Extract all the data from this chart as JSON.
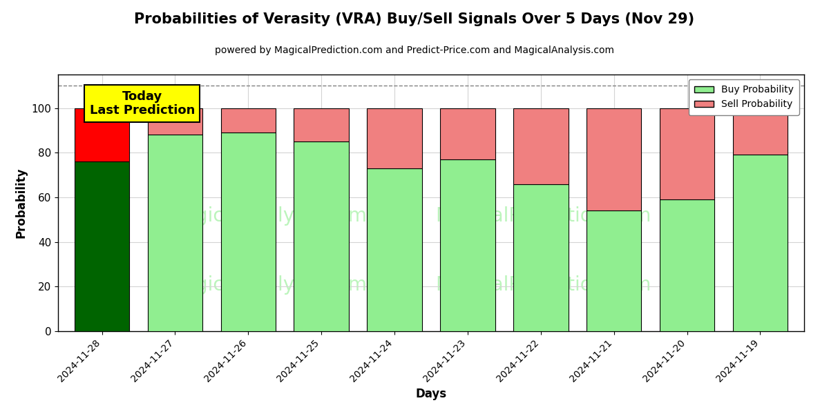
{
  "title": "Probabilities of Verasity (VRA) Buy/Sell Signals Over 5 Days (Nov 29)",
  "subtitle": "powered by MagicalPrediction.com and Predict-Price.com and MagicalAnalysis.com",
  "xlabel": "Days",
  "ylabel": "Probability",
  "dates": [
    "2024-11-28",
    "2024-11-27",
    "2024-11-26",
    "2024-11-25",
    "2024-11-24",
    "2024-11-23",
    "2024-11-22",
    "2024-11-21",
    "2024-11-20",
    "2024-11-19"
  ],
  "buy_values": [
    76,
    88,
    89,
    85,
    73,
    77,
    66,
    54,
    59,
    79
  ],
  "sell_values": [
    24,
    12,
    11,
    15,
    27,
    23,
    34,
    46,
    41,
    21
  ],
  "today_bar_buy_color": "#006400",
  "today_bar_sell_color": "#FF0000",
  "normal_bar_buy_color": "#90EE90",
  "normal_bar_sell_color": "#F08080",
  "today_label_bg": "#FFFF00",
  "today_label_text": "Today\nLast Prediction",
  "dashed_line_y": 110,
  "ylim": [
    0,
    115
  ],
  "yticks": [
    0,
    20,
    40,
    60,
    80,
    100
  ],
  "background_color": "#FFFFFF",
  "legend_buy_label": "Buy Probability",
  "legend_sell_label": "Sell Probability",
  "title_fontsize": 15,
  "subtitle_fontsize": 10,
  "axis_label_fontsize": 12,
  "bar_width": 0.75
}
